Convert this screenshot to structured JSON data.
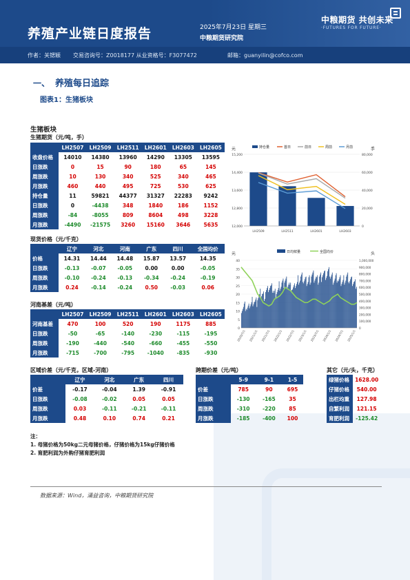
{
  "header": {
    "title": "养殖产业链日度报告",
    "date": "2025年7月23日 星期三",
    "institute": "中粮期货研究院",
    "logo_cn": "中粮期货  共创未来",
    "logo_en": "·FUTURES FOR FUTURE·",
    "author": "作者：关锶颖",
    "qual_no": "交易咨询号：Z0018177 从业资格号：F3077472",
    "email": "邮箱：guanyilin@cofco.com"
  },
  "section": {
    "num": "一、",
    "title": "养殖每日追踪"
  },
  "figure_title": "图表1：生猪板块",
  "board_title": "生猪板块",
  "futures": {
    "title": "生猪期货（元/吨，手）",
    "columns": [
      "LH2507",
      "LH2509",
      "LH2511",
      "LH2601",
      "LH2603",
      "LH2605"
    ],
    "rows": [
      {
        "label": "收盘价格",
        "values": [
          "14010",
          "14380",
          "13960",
          "14290",
          "13305",
          "13595"
        ],
        "color": "blk"
      },
      {
        "label": "日涨跌",
        "values": [
          "0",
          "15",
          "90",
          "180",
          "65",
          "145"
        ],
        "color": "red"
      },
      {
        "label": "周涨跌",
        "values": [
          "10",
          "130",
          "340",
          "525",
          "340",
          "465"
        ],
        "color": "red"
      },
      {
        "label": "月涨跌",
        "values": [
          "460",
          "440",
          "495",
          "725",
          "530",
          "625"
        ],
        "color": "red"
      },
      {
        "label": "持仓量",
        "values": [
          "11",
          "59821",
          "44377",
          "31327",
          "22283",
          "9242"
        ],
        "color": "blk"
      },
      {
        "label": "日涨跌",
        "values": [
          "0",
          "-4438",
          "348",
          "1840",
          "186",
          "1152"
        ],
        "color": "mix"
      },
      {
        "label": "周涨跌",
        "values": [
          "-84",
          "-8055",
          "809",
          "8604",
          "498",
          "3228"
        ],
        "color": "mix"
      },
      {
        "label": "月涨跌",
        "values": [
          "-4490",
          "-21575",
          "3260",
          "15160",
          "3646",
          "5635"
        ],
        "color": "mix"
      }
    ]
  },
  "spot": {
    "title": "现货价格（元/千克）",
    "columns": [
      "辽宁",
      "河北",
      "河南",
      "广东",
      "四川",
      "全国均价"
    ],
    "rows": [
      {
        "label": "价格",
        "values": [
          "14.31",
          "14.44",
          "14.48",
          "15.87",
          "13.57",
          "14.35"
        ]
      },
      {
        "label": "日涨跌",
        "values": [
          "-0.13",
          "-0.07",
          "-0.05",
          "0.00",
          "0.00",
          "-0.05"
        ]
      },
      {
        "label": "周涨跌",
        "values": [
          "-0.10",
          "-0.24",
          "-0.13",
          "-0.34",
          "-0.24",
          "-0.19"
        ]
      },
      {
        "label": "月涨跌",
        "values": [
          "0.24",
          "-0.14",
          "-0.24",
          "0.50",
          "-0.03",
          "0.06"
        ]
      }
    ]
  },
  "basis": {
    "title": "河南基差（元/吨）",
    "columns": [
      "LH2507",
      "LH2509",
      "LH2511",
      "LH2601",
      "LH2603",
      "LH2605"
    ],
    "rows": [
      {
        "label": "河南基差",
        "values": [
          "470",
          "100",
          "520",
          "190",
          "1175",
          "885"
        ]
      },
      {
        "label": "日涨跌",
        "values": [
          "-50",
          "-65",
          "-140",
          "-230",
          "-115",
          "-195"
        ]
      },
      {
        "label": "周涨跌",
        "values": [
          "-190",
          "-440",
          "-540",
          "-660",
          "-455",
          "-550"
        ]
      },
      {
        "label": "月涨跌",
        "values": [
          "-715",
          "-700",
          "-795",
          "-1040",
          "-835",
          "-930"
        ]
      }
    ]
  },
  "regional": {
    "title": "区域价差（元/千克，区域-河南）",
    "columns": [
      "辽宁",
      "河北",
      "广东",
      "四川"
    ],
    "rows": [
      {
        "label": "价差",
        "values": [
          "-0.17",
          "-0.04",
          "1.39",
          "-0.91"
        ]
      },
      {
        "label": "日涨跌",
        "values": [
          "-0.08",
          "-0.02",
          "0.05",
          "0.05"
        ]
      },
      {
        "label": "周涨跌",
        "values": [
          "0.03",
          "-0.11",
          "-0.21",
          "-0.11"
        ]
      },
      {
        "label": "月涨跌",
        "values": [
          "0.48",
          "0.10",
          "0.74",
          "0.21"
        ]
      }
    ]
  },
  "calendar": {
    "title": "跨期价差（元/吨）",
    "columns": [
      "5-9",
      "9-1",
      "1-5"
    ],
    "rows": [
      {
        "label": "价差",
        "values": [
          "785",
          "90",
          "695"
        ]
      },
      {
        "label": "日涨跌",
        "values": [
          "-130",
          "-165",
          "35"
        ]
      },
      {
        "label": "周涨跌",
        "values": [
          "-310",
          "-220",
          "85"
        ]
      },
      {
        "label": "月涨跌",
        "values": [
          "-185",
          "-400",
          "100"
        ]
      }
    ]
  },
  "other": {
    "title": "其它（元/头，千克）",
    "rows": [
      {
        "label": "绿猪价格",
        "value": "1628.00"
      },
      {
        "label": "仔猪价格",
        "value": "540.00"
      },
      {
        "label": "出栏均重",
        "value": "127.98"
      },
      {
        "label": "自繁利润",
        "value": "121.15"
      },
      {
        "label": "育肥利润",
        "value": "-125.42"
      }
    ]
  },
  "notes": {
    "title": "注：",
    "lines": [
      "1. 母猪价格为50kg二元母猪价格，仔猪价格为15kg仔猪价格",
      "2. 育肥利润为外购仔猪育肥利润"
    ]
  },
  "source": "数据来源：Wind，涌益咨询，中粮期货研究院",
  "chart_data": [
    {
      "type": "bar",
      "ylabel": "元",
      "y2label": "手",
      "legend": [
        "持仓量",
        "首日",
        "前日",
        "周前",
        "月前"
      ],
      "legend_colors": [
        "#1d4a8a",
        "#e06030",
        "#a8a8a8",
        "#f0c020",
        "#5b9bd5"
      ],
      "categories": [
        "LH2509",
        "LH2511",
        "LH2601",
        "LH2603"
      ],
      "values": [
        59821,
        44377,
        31327,
        22283
      ],
      "lines": [
        {
          "values": [
            14380,
            13960,
            14290,
            13305
          ]
        },
        {
          "values": [
            14365,
            13870,
            14110,
            13240
          ]
        },
        {
          "values": [
            14250,
            13620,
            13765,
            12965
          ]
        },
        {
          "values": [
            13940,
            13465,
            13565,
            12775
          ]
        }
      ],
      "ylim": [
        12800,
        15200
      ],
      "y_ticks": [
        "15,200",
        "14,400",
        "13,600",
        "12,800",
        "12,000"
      ],
      "y2lim": [
        0,
        80000
      ],
      "y2_ticks": [
        "80,000",
        "60,000",
        "40,000",
        "20,000",
        "0"
      ],
      "legend_position": "top"
    },
    {
      "type": "area",
      "ylabel": "元",
      "y2label": "头",
      "legend": [
        "日均鲜量",
        "全国均价"
      ],
      "legend_colors": [
        "#1d4a8a",
        "#8fd25a"
      ],
      "x_ticks": [
        "2020/7/1",
        "2021/1/1",
        "2021/7/1",
        "2022/1/1",
        "2022/7/1",
        "2023/1/1",
        "2023/7/1",
        "2024/1/1",
        "2024/7/1",
        "2025/1/1"
      ],
      "ylim": [
        0,
        40
      ],
      "y_ticks": [
        "40",
        "35",
        "30",
        "25",
        "20",
        "15",
        "10",
        "5",
        "0"
      ],
      "y2lim": [
        0,
        1000000
      ],
      "y2_ticks": [
        "1,000,000",
        "900,000",
        "800,000",
        "700,000",
        "600,000",
        "500,000",
        "400,000",
        "300,000",
        "200,000",
        "100,000",
        "0"
      ],
      "price_series": [
        36,
        34,
        32,
        30,
        28,
        24,
        20,
        18,
        15,
        14,
        13,
        14,
        17,
        18,
        19,
        21,
        24,
        23,
        22,
        20,
        18,
        17,
        16,
        15,
        15,
        16,
        17,
        17,
        16,
        15,
        14,
        15,
        16,
        18,
        19,
        20,
        18,
        17,
        16,
        15,
        14,
        14,
        15
      ],
      "volume_series": [
        30,
        32,
        28,
        35,
        40,
        38,
        45,
        50,
        48,
        55,
        60,
        58,
        52,
        55,
        62,
        65,
        70,
        66,
        60,
        58,
        65,
        72,
        75,
        70,
        68,
        72,
        78,
        74,
        70,
        76,
        80,
        78,
        82,
        76,
        72,
        74,
        70,
        68,
        72,
        75,
        70,
        68,
        66
      ],
      "legend_position": "top"
    }
  ]
}
